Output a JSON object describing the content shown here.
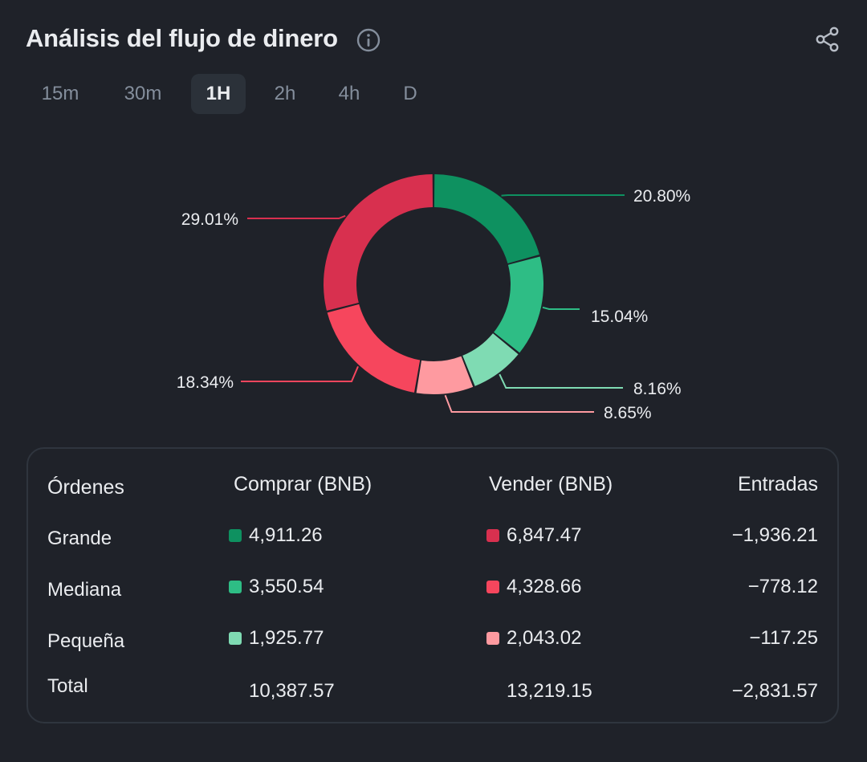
{
  "header": {
    "title": "Análisis del flujo de dinero",
    "info_icon": "info-circle-icon",
    "share_icon": "share-icon"
  },
  "tabs": [
    {
      "label": "15m",
      "active": false
    },
    {
      "label": "30m",
      "active": false
    },
    {
      "label": "1H",
      "active": true
    },
    {
      "label": "2h",
      "active": false
    },
    {
      "label": "4h",
      "active": false
    },
    {
      "label": "D",
      "active": false
    }
  ],
  "colors": {
    "large_buy": "#0e9160",
    "medium_buy": "#2ebd85",
    "small_buy": "#7fdbb3",
    "large_sell": "#d8304f",
    "medium_sell": "#f6465d",
    "small_sell": "#fe9aa0"
  },
  "chart_data": {
    "type": "pie",
    "donut": true,
    "slices": [
      {
        "name": "Grande compra",
        "value": 20.8,
        "label": "20.80%",
        "color": "#0e9160"
      },
      {
        "name": "Mediana compra",
        "value": 15.04,
        "label": "15.04%",
        "color": "#2ebd85"
      },
      {
        "name": "Pequeña compra",
        "value": 8.16,
        "label": "8.16%",
        "color": "#7fdbb3"
      },
      {
        "name": "Pequeña venta",
        "value": 8.65,
        "label": "8.65%",
        "color": "#fe9aa0"
      },
      {
        "name": "Mediana venta",
        "value": 18.34,
        "label": "18.34%",
        "color": "#f6465d"
      },
      {
        "name": "Grande venta",
        "value": 29.01,
        "label": "29.01%",
        "color": "#d8304f"
      }
    ]
  },
  "table": {
    "headers": {
      "orders": "Órdenes",
      "buy": "Comprar (BNB)",
      "sell": "Vender (BNB)",
      "inflow": "Entradas"
    },
    "rows": [
      {
        "label": "Grande",
        "buy": "4,911.26",
        "sell": "6,847.47",
        "inflow": "−1,936.21",
        "buy_color": "#0e9160",
        "sell_color": "#d8304f"
      },
      {
        "label": "Mediana",
        "buy": "3,550.54",
        "sell": "4,328.66",
        "inflow": "−778.12",
        "buy_color": "#2ebd85",
        "sell_color": "#f6465d"
      },
      {
        "label": "Pequeña",
        "buy": "1,925.77",
        "sell": "2,043.02",
        "inflow": "−117.25",
        "buy_color": "#7fdbb3",
        "sell_color": "#fe9aa0"
      }
    ],
    "total": {
      "label": "Total",
      "buy": "10,387.57",
      "sell": "13,219.15",
      "inflow": "−2,831.57"
    }
  }
}
